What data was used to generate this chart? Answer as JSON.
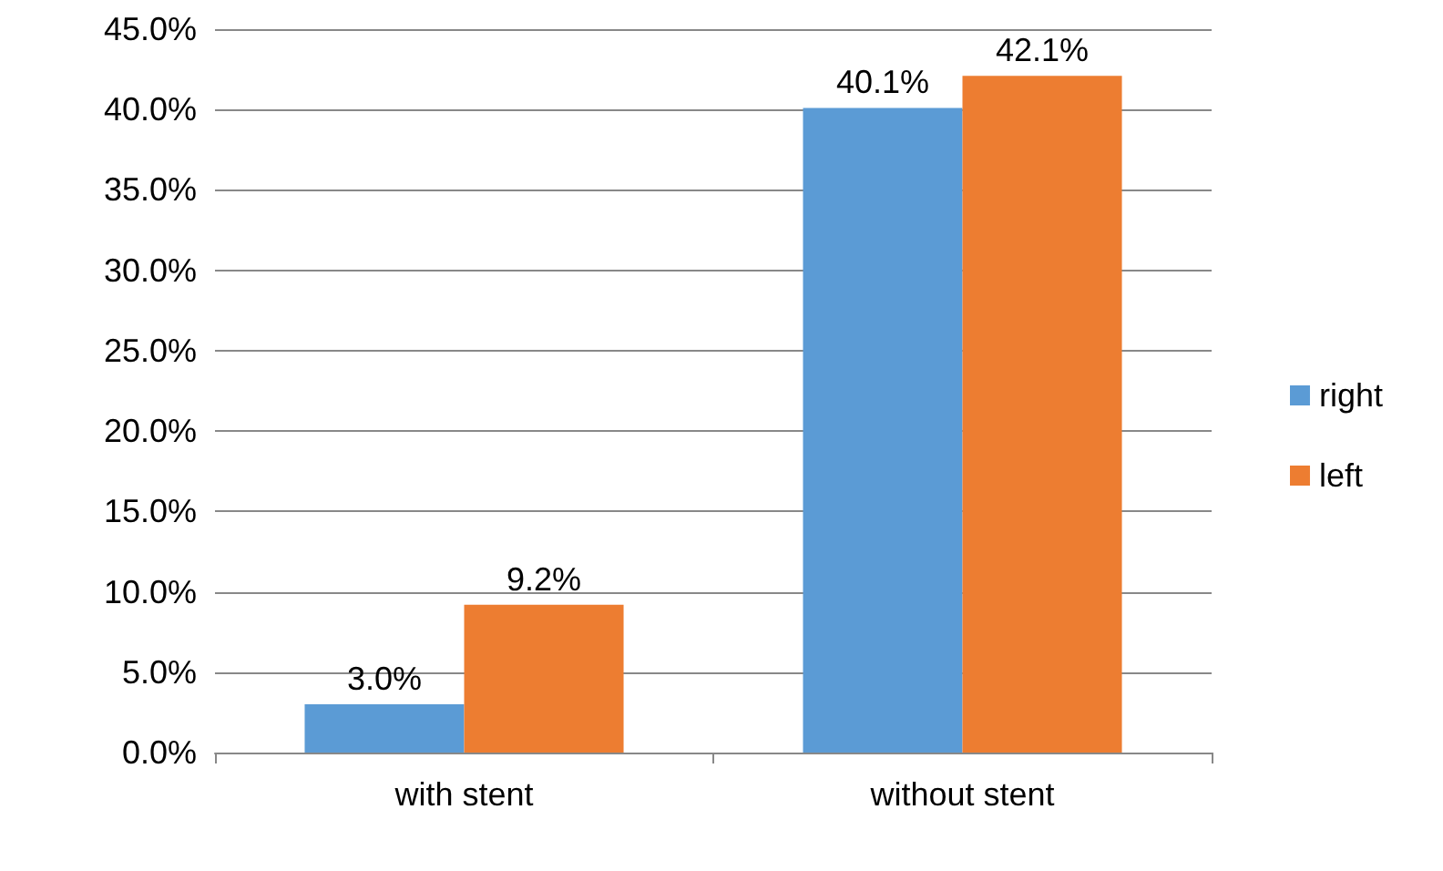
{
  "chart_data": {
    "type": "bar",
    "categories": [
      "with stent",
      "without stent"
    ],
    "series": [
      {
        "name": "right",
        "color": "#5b9bd5",
        "values": [
          3.0,
          40.1
        ],
        "value_labels": [
          "3.0%",
          "40.1%"
        ]
      },
      {
        "name": "left",
        "color": "#ed7d31",
        "values": [
          9.2,
          42.1
        ],
        "value_labels": [
          "9.2%",
          "42.1%"
        ]
      }
    ],
    "ylim": [
      0,
      45
    ],
    "yticks": [
      {
        "value": 0,
        "label": "0.0%"
      },
      {
        "value": 5,
        "label": "5.0%"
      },
      {
        "value": 10,
        "label": "10.0%"
      },
      {
        "value": 15,
        "label": "15.0%"
      },
      {
        "value": 20,
        "label": "20.0%"
      },
      {
        "value": 25,
        "label": "25.0%"
      },
      {
        "value": 30,
        "label": "30.0%"
      },
      {
        "value": 35,
        "label": "35.0%"
      },
      {
        "value": 40,
        "label": "40.0%"
      },
      {
        "value": 45,
        "label": "45.0%"
      }
    ],
    "grid": "y",
    "legend": "right"
  }
}
